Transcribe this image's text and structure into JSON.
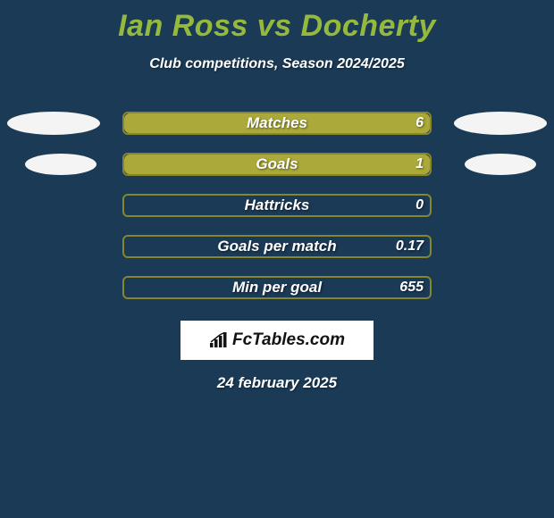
{
  "colors": {
    "background": "#1a3a55",
    "title": "#95b93e",
    "text_white": "#ffffff",
    "oval": "#f3f4f3",
    "bar_fill": "#aaa939",
    "bar_border": "#aaa939",
    "bar_track_border": "#85862f",
    "logo_bg": "#ffffff",
    "logo_text": "#131313"
  },
  "title": "Ian Ross vs Docherty",
  "subtitle": "Club competitions, Season 2024/2025",
  "date": "24 february 2025",
  "logo": {
    "text": "FcTables.com"
  },
  "oval_style": {
    "width_large": 104,
    "height_large": 26,
    "width_small": 80,
    "height_small": 24
  },
  "rows": [
    {
      "label": "Matches",
      "value": "6",
      "fill_pct": 100,
      "left_oval": "large",
      "right_oval": "large"
    },
    {
      "label": "Goals",
      "value": "1",
      "fill_pct": 100,
      "left_oval": "small",
      "right_oval": "small"
    },
    {
      "label": "Hattricks",
      "value": "0",
      "fill_pct": 0,
      "left_oval": null,
      "right_oval": null
    },
    {
      "label": "Goals per match",
      "value": "0.17",
      "fill_pct": 0,
      "left_oval": null,
      "right_oval": null
    },
    {
      "label": "Min per goal",
      "value": "655",
      "fill_pct": 0,
      "left_oval": null,
      "right_oval": null
    }
  ]
}
